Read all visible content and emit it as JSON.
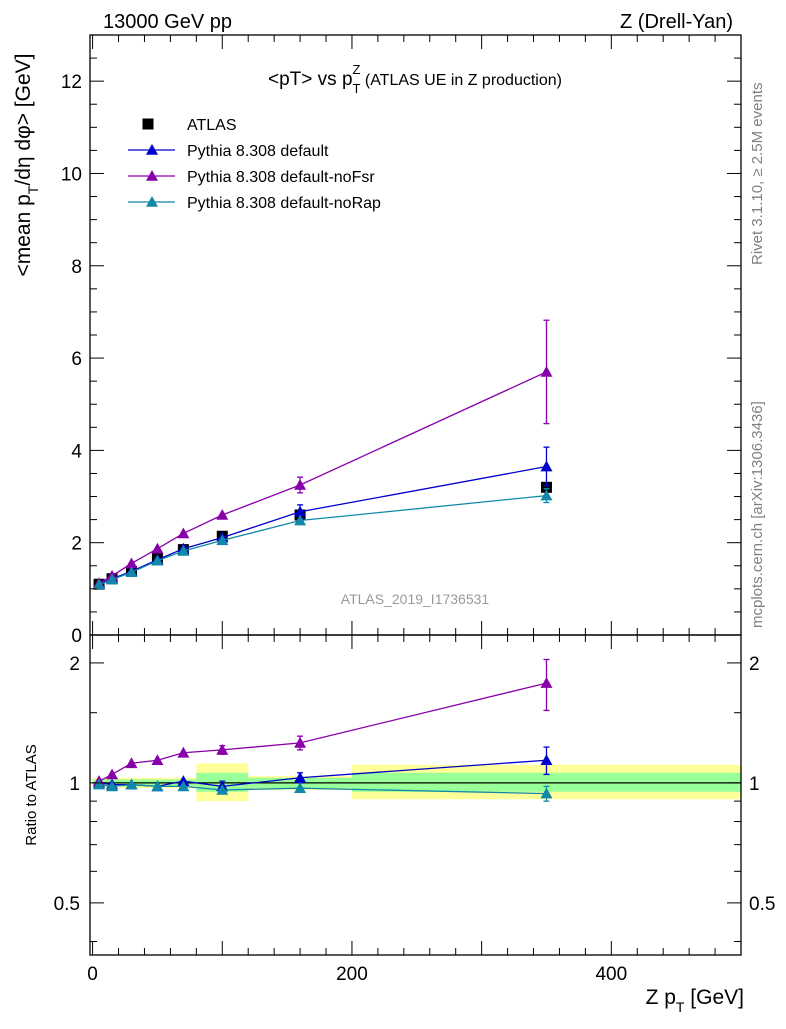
{
  "header": {
    "left": "13000 GeV pp",
    "right": "Z (Drell-Yan)"
  },
  "side_labels": {
    "right_top": "Rivet 3.1.10, ≥ 2.5M events",
    "right_bottom": "mcplots.cern.ch [arXiv:1306.3436]"
  },
  "chart_data": [
    {
      "type": "line",
      "title_main": "<pT> vs p",
      "title_sup": "Z",
      "title_sub": "T",
      "title_tail": " (ATLAS UE in Z production)",
      "ylabel_main": "<mean p",
      "ylabel_sub": "T",
      "ylabel_tail": "/dη dφ> [GeV]",
      "xlim": [
        -2,
        500
      ],
      "ylim": [
        0,
        13
      ],
      "y_ticks": [
        0,
        2,
        4,
        6,
        8,
        10,
        12
      ],
      "x_ticks": [
        0,
        200,
        400
      ],
      "watermark": "ATLAS_2019_I1736531",
      "legend_position": "top-left",
      "series": [
        {
          "name": "ATLAS",
          "color": "#000000",
          "marker": "square",
          "x": [
            5,
            15,
            30,
            50,
            70,
            100,
            160,
            350
          ],
          "y": [
            1.1,
            1.22,
            1.38,
            1.65,
            1.85,
            2.14,
            2.6,
            3.2
          ],
          "yerr": [
            0.03,
            0.03,
            0.04,
            0.05,
            0.06,
            0.07,
            0.08,
            0.12
          ],
          "xerr": [
            5,
            5,
            10,
            10,
            10,
            20,
            40,
            150
          ]
        },
        {
          "name": "Pythia 8.308 default",
          "color": "#0000cc",
          "marker": "triangle",
          "x": [
            5,
            15,
            30,
            50,
            70,
            100,
            160,
            350
          ],
          "y": [
            1.11,
            1.22,
            1.38,
            1.63,
            1.87,
            2.11,
            2.67,
            3.65
          ],
          "yerr": [
            0.02,
            0.02,
            0.03,
            0.04,
            0.05,
            0.08,
            0.15,
            0.42
          ]
        },
        {
          "name": "Pythia 8.308 default-noFsr",
          "color": "#8800aa",
          "marker": "triangle",
          "x": [
            5,
            15,
            30,
            50,
            70,
            100,
            160,
            350
          ],
          "y": [
            1.12,
            1.28,
            1.55,
            1.87,
            2.2,
            2.6,
            3.25,
            5.7
          ],
          "yerr": [
            0.02,
            0.02,
            0.03,
            0.04,
            0.05,
            0.08,
            0.17,
            1.12
          ]
        },
        {
          "name": "Pythia 8.308 default-noRap",
          "color": "#1188aa",
          "marker": "triangle",
          "x": [
            5,
            15,
            30,
            50,
            70,
            100,
            160,
            350
          ],
          "y": [
            1.09,
            1.2,
            1.36,
            1.61,
            1.82,
            2.05,
            2.48,
            3.02
          ],
          "yerr": [
            0.02,
            0.02,
            0.03,
            0.04,
            0.04,
            0.06,
            0.08,
            0.15
          ]
        }
      ]
    },
    {
      "type": "line",
      "ylabel": "Ratio to ATLAS",
      "xlabel_main": "Z p",
      "xlabel_sub": "T",
      "xlabel_tail": " [GeV]",
      "xlim": [
        -2,
        500
      ],
      "ylim": [
        0.37,
        2.35
      ],
      "y_scale": "log",
      "y_ticks": [
        0.5,
        1,
        2
      ],
      "y_tick_labels": [
        "0.5",
        "1",
        "2"
      ],
      "x_ticks": [
        0,
        200,
        400
      ],
      "x_tick_labels": [
        "0",
        "200",
        "400"
      ],
      "bands": [
        {
          "x0": 0,
          "x1": 80,
          "green": [
            0.98,
            1.02
          ],
          "yellow": [
            0.97,
            1.03
          ]
        },
        {
          "x0": 80,
          "x1": 120,
          "green": [
            0.95,
            1.06
          ],
          "yellow": [
            0.9,
            1.12
          ]
        },
        {
          "x0": 120,
          "x1": 200,
          "green": [
            0.97,
            1.03
          ],
          "yellow": [
            0.96,
            1.04
          ]
        },
        {
          "x0": 200,
          "x1": 500,
          "green": [
            0.95,
            1.06
          ],
          "yellow": [
            0.91,
            1.11
          ]
        }
      ],
      "series": [
        {
          "name": "Pythia 8.308 default",
          "color": "#0000cc",
          "x": [
            5,
            15,
            30,
            50,
            70,
            100,
            160,
            350
          ],
          "y": [
            1.0,
            0.99,
            0.99,
            0.98,
            1.01,
            0.98,
            1.03,
            1.14
          ],
          "yerr": [
            0.01,
            0.01,
            0.01,
            0.01,
            0.02,
            0.03,
            0.03,
            0.09
          ]
        },
        {
          "name": "Pythia 8.308 default-noFsr",
          "color": "#8800aa",
          "x": [
            5,
            15,
            30,
            50,
            70,
            100,
            160,
            350
          ],
          "y": [
            1.01,
            1.05,
            1.12,
            1.14,
            1.19,
            1.21,
            1.26,
            1.78
          ],
          "yerr": [
            0.01,
            0.01,
            0.02,
            0.02,
            0.02,
            0.03,
            0.05,
            0.26
          ]
        },
        {
          "name": "Pythia 8.308 default-noRap",
          "color": "#1188aa",
          "x": [
            5,
            15,
            30,
            50,
            70,
            100,
            160,
            350
          ],
          "y": [
            0.99,
            0.98,
            0.99,
            0.98,
            0.98,
            0.96,
            0.97,
            0.94
          ],
          "yerr": [
            0.01,
            0.01,
            0.01,
            0.01,
            0.01,
            0.02,
            0.02,
            0.04
          ]
        }
      ]
    }
  ]
}
